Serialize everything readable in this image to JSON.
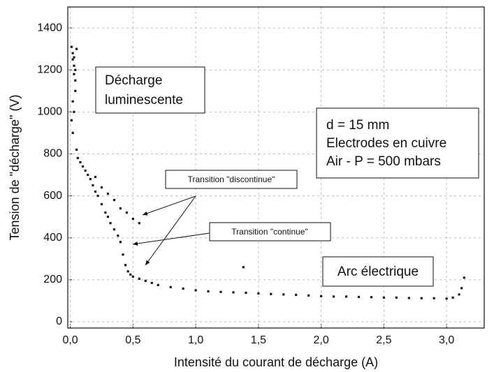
{
  "chart_data": {
    "type": "scatter",
    "xlabel": "Intensité du courant de décharge (A)",
    "ylabel": "Tension de \"décharge\" (V)",
    "annotations": [
      "Décharge",
      "luminescente",
      "d = 15 mm",
      "Electrodes en cuivre",
      "Air - P = 500 mbars",
      "Transition \"discontinue\"",
      "Transition \"continue\"",
      "Arc électrique"
    ],
    "color": "#1a1a1a",
    "grid": true,
    "xlim": [
      -0.02,
      3.3
    ],
    "ylim": [
      -30,
      1500
    ],
    "xticks": [
      {
        "value": 0,
        "label": "0,0"
      },
      {
        "value": 0.5,
        "label": "0,5"
      },
      {
        "value": 1,
        "label": "1,0"
      },
      {
        "value": 1.5,
        "label": "1,5"
      },
      {
        "value": 2,
        "label": "2,0"
      },
      {
        "value": 2.5,
        "label": "2,5"
      },
      {
        "value": 3,
        "label": "3,0"
      }
    ],
    "yticks": [
      0,
      200,
      400,
      600,
      800,
      1000,
      1200,
      1400
    ],
    "x": [
      0.01,
      0.02,
      0.02,
      0.03,
      0.03,
      0.04,
      0.04,
      0.05,
      0.02,
      0.03,
      0.01,
      0.04,
      0.03,
      0.02,
      0.05,
      0.06,
      0.08,
      0.1,
      0.12,
      0.14,
      0.16,
      0.18,
      0.2,
      0.22,
      0.25,
      0.28,
      0.3,
      0.32,
      0.35,
      0.38,
      0.4,
      0.42,
      0.44,
      0.46,
      0.48,
      0.5,
      0.55,
      0.6,
      0.65,
      0.7,
      0.8,
      0.9,
      1.0,
      1.1,
      1.2,
      1.3,
      1.38,
      1.4,
      1.5,
      1.6,
      1.7,
      1.8,
      1.9,
      2.0,
      2.1,
      2.2,
      2.3,
      2.4,
      2.5,
      2.6,
      2.7,
      2.8,
      2.9,
      3.0,
      3.05,
      3.1,
      3.12,
      3.14,
      0.2,
      0.25,
      0.3,
      0.35,
      0.4,
      0.45,
      0.5,
      0.55
    ],
    "values": [
      1310,
      1280,
      1250,
      1220,
      1180,
      1150,
      1100,
      1300,
      1050,
      1000,
      960,
      1200,
      1260,
      900,
      820,
      780,
      760,
      740,
      720,
      700,
      680,
      650,
      620,
      600,
      560,
      520,
      500,
      470,
      440,
      410,
      380,
      320,
      270,
      240,
      225,
      215,
      205,
      195,
      185,
      175,
      165,
      158,
      150,
      145,
      142,
      140,
      260,
      138,
      135,
      132,
      130,
      128,
      125,
      122,
      120,
      120,
      118,
      117,
      115,
      115,
      113,
      112,
      112,
      110,
      115,
      130,
      160,
      210,
      690,
      640,
      610,
      580,
      540,
      520,
      490,
      470
    ]
  }
}
